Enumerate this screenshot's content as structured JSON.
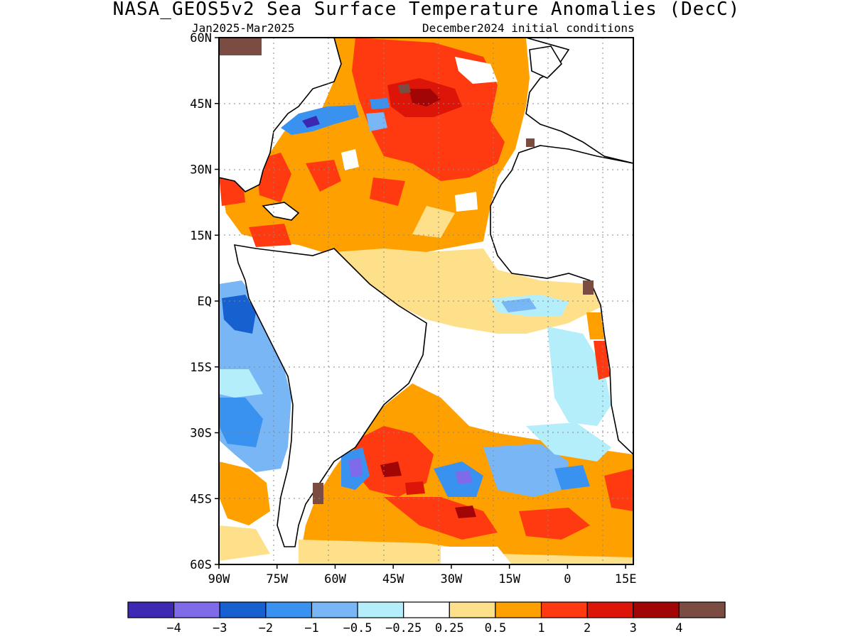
{
  "title": "NASA_GEOS5v2 Sea Surface Temperature Anomalies (DecC)",
  "subtitle_left": "Jan2025-Mar2025",
  "subtitle_right": "December2024 initial conditions",
  "axes": {
    "lat_labels": [
      "60N",
      "45N",
      "30N",
      "15N",
      "EQ",
      "15S",
      "30S",
      "45S",
      "60S"
    ],
    "lat_values": [
      60,
      45,
      30,
      15,
      0,
      -15,
      -30,
      -45,
      -60
    ],
    "lon_labels": [
      "90W",
      "75W",
      "60W",
      "45W",
      "30W",
      "15W",
      "0",
      "15E"
    ],
    "lon_values": [
      -90,
      -75,
      -60,
      -45,
      -30,
      -15,
      0,
      15
    ],
    "lon_range": [
      -90,
      17
    ],
    "lat_range": [
      -60,
      60
    ],
    "grid": "dotted"
  },
  "colorbar": {
    "colors": [
      "#3d28b4",
      "#7f6bea",
      "#1760d0",
      "#3a92f0",
      "#78b6f5",
      "#b3eefa",
      "#ffffff",
      "#fee08b",
      "#fea000",
      "#ff3a10",
      "#dc1508",
      "#a20505",
      "#7b4c42"
    ],
    "labels": [
      "−4",
      "−3",
      "−2",
      "−1",
      "−0.5",
      "−0.25",
      "0.25",
      "0.5",
      "1",
      "2",
      "3",
      "4"
    ]
  },
  "map_data": {
    "regions": [
      {
        "name": "north-atlantic-warm",
        "color": "#fea000"
      },
      {
        "name": "gulf-stream-cold",
        "color": "#3a92f0"
      },
      {
        "name": "south-atlantic-warm",
        "color": "#ff3a10"
      },
      {
        "name": "east-pacific-cold",
        "color": "#78b6f5"
      },
      {
        "name": "brazil-malvinas-cold",
        "color": "#7f6bea"
      }
    ]
  }
}
